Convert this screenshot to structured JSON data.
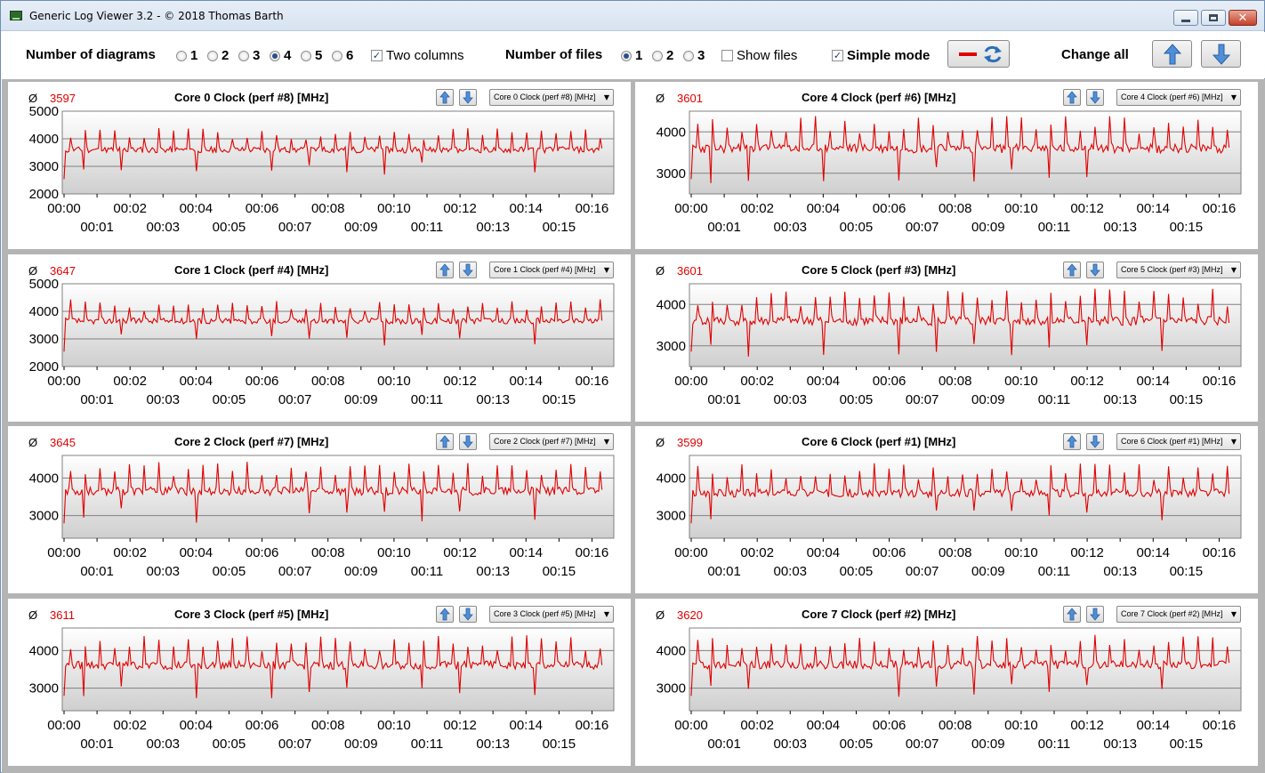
{
  "window": {
    "title": "Generic Log Viewer 3.2 - © 2018 Thomas Barth",
    "close_glyph": "✕"
  },
  "toolbar": {
    "diagrams_label": "Number of diagrams",
    "diagram_options": [
      "1",
      "2",
      "3",
      "4",
      "5",
      "6"
    ],
    "diagrams_selected": "4",
    "two_columns_label": "Two columns",
    "two_columns_checked": true,
    "files_label": "Number of files",
    "file_options": [
      "1",
      "2",
      "3"
    ],
    "files_selected": "1",
    "show_files_label": "Show files",
    "show_files_checked": false,
    "simple_mode_label": "Simple mode",
    "simple_mode_checked": true,
    "change_all_label": "Change all",
    "checkmark": "✓",
    "icons": [
      "red-line-icon",
      "refresh-icon",
      "arrow-up-icon",
      "arrow-down-icon"
    ]
  },
  "panels": [
    {
      "avg_symbol": "Ø",
      "avg": "3597",
      "title": "Core 0 Clock (perf #8) [MHz]",
      "combo": "Core 0 Clock (perf #8) [MHz]",
      "seed": 11,
      "chart_data": {
        "type": "line",
        "ylim": [
          2000,
          5000
        ],
        "yticks": [
          2000,
          3000,
          4000,
          5000
        ],
        "base": 3600,
        "mean": 3597,
        "dips": 12
      }
    },
    {
      "avg_symbol": "Ø",
      "avg": "3601",
      "title": "Core 4 Clock (perf #6) [MHz]",
      "combo": "Core 4 Clock (perf #6) [MHz]",
      "seed": 23,
      "chart_data": {
        "type": "line",
        "ylim": [
          2500,
          4500
        ],
        "yticks": [
          3000,
          4000
        ],
        "base": 3600,
        "mean": 3601,
        "dips": 6
      }
    },
    {
      "avg_symbol": "Ø",
      "avg": "3647",
      "title": "Core 1 Clock (perf #4) [MHz]",
      "combo": "Core 1 Clock (perf #4) [MHz]",
      "seed": 37,
      "chart_data": {
        "type": "line",
        "ylim": [
          2000,
          5000
        ],
        "yticks": [
          2000,
          3000,
          4000,
          5000
        ],
        "base": 3650,
        "mean": 3647,
        "dips": 3
      }
    },
    {
      "avg_symbol": "Ø",
      "avg": "3601",
      "title": "Core 5 Clock (perf #3) [MHz]",
      "combo": "Core 5 Clock (perf #3) [MHz]",
      "seed": 41,
      "chart_data": {
        "type": "line",
        "ylim": [
          2500,
          4500
        ],
        "yticks": [
          3000,
          4000
        ],
        "base": 3600,
        "mean": 3601,
        "dips": 4
      }
    },
    {
      "avg_symbol": "Ø",
      "avg": "3645",
      "title": "Core 2 Clock (perf #7) [MHz]",
      "combo": "Core 2 Clock (perf #7) [MHz]",
      "seed": 53,
      "chart_data": {
        "type": "line",
        "ylim": [
          2400,
          4600
        ],
        "yticks": [
          3000,
          4000
        ],
        "base": 3650,
        "mean": 3645,
        "dips": 8
      }
    },
    {
      "avg_symbol": "Ø",
      "avg": "3599",
      "title": "Core 6 Clock (perf #1) [MHz]",
      "combo": "Core 6 Clock (perf #1) [MHz]",
      "seed": 67,
      "chart_data": {
        "type": "line",
        "ylim": [
          2400,
          4600
        ],
        "yticks": [
          3000,
          4000
        ],
        "base": 3600,
        "mean": 3599,
        "dips": 5
      }
    },
    {
      "avg_symbol": "Ø",
      "avg": "3611",
      "title": "Core 3 Clock (perf #5) [MHz]",
      "combo": "Core 3 Clock (perf #5) [MHz]",
      "seed": 79,
      "chart_data": {
        "type": "line",
        "ylim": [
          2400,
          4600
        ],
        "yticks": [
          3000,
          4000
        ],
        "base": 3610,
        "mean": 3611,
        "dips": 5
      }
    },
    {
      "avg_symbol": "Ø",
      "avg": "3620",
      "title": "Core 7 Clock (perf #2) [MHz]",
      "combo": "Core 7 Clock (perf #2) [MHz]",
      "seed": 97,
      "chart_data": {
        "type": "line",
        "ylim": [
          2400,
          4600
        ],
        "yticks": [
          3000,
          4000
        ],
        "base": 3620,
        "mean": 3620,
        "dips": 4
      }
    }
  ],
  "x_axis": {
    "upper_labels": [
      "00:00",
      "00:02",
      "00:04",
      "00:06",
      "00:08",
      "00:10",
      "00:12",
      "00:14",
      "00:16"
    ],
    "lower_labels": [
      "00:01",
      "00:03",
      "00:05",
      "00:07",
      "00:09",
      "00:11",
      "00:13",
      "00:15"
    ],
    "duration_minutes": 16.5
  },
  "colors": {
    "series": "#e00000",
    "grid": "#808080",
    "plot_top": "#ffffff",
    "plot_bottom": "#cfcfcf"
  }
}
